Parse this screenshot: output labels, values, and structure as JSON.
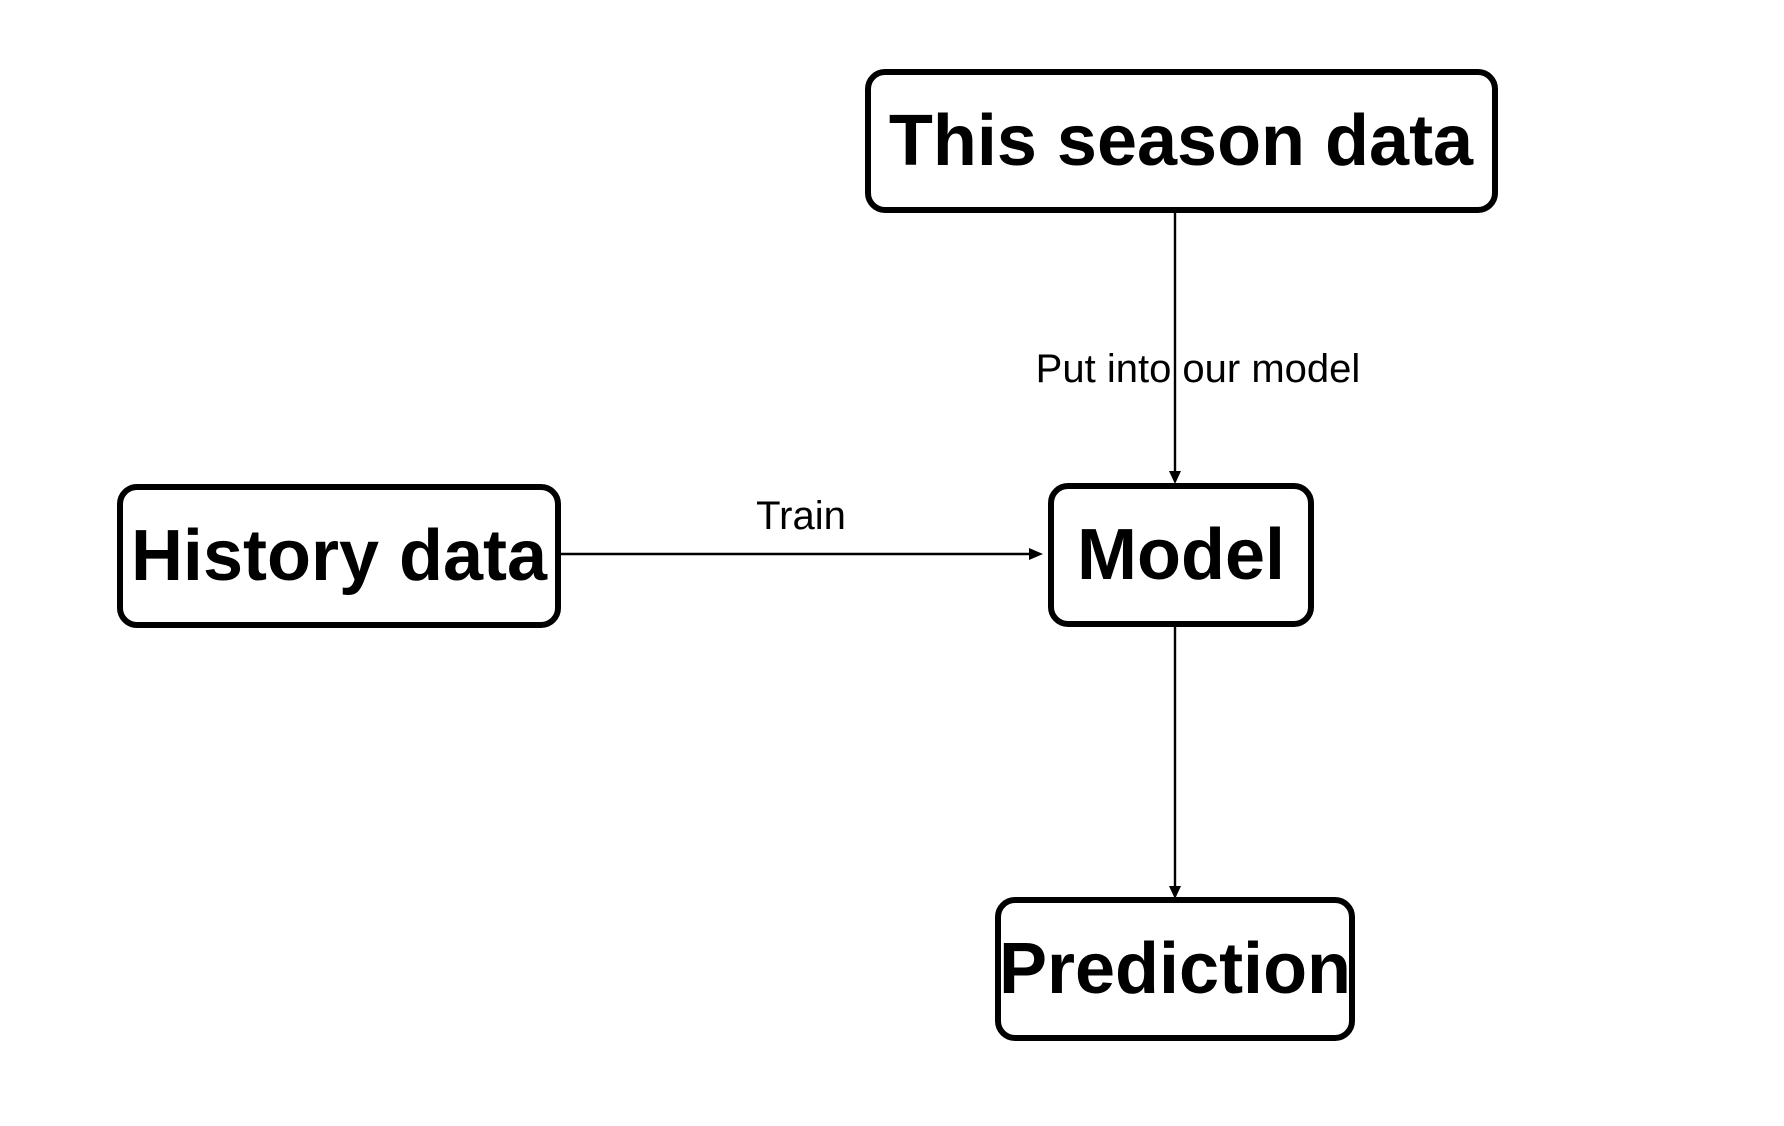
{
  "diagram": {
    "nodes": {
      "this_season": {
        "label": "This season data"
      },
      "history": {
        "label": "History data"
      },
      "model": {
        "label": "Model"
      },
      "prediction": {
        "label": "Prediction"
      }
    },
    "edges": {
      "history_to_model": {
        "label": "Train"
      },
      "season_to_model": {
        "label": "Put into our model"
      },
      "model_to_prediction": {
        "label": ""
      }
    },
    "colors": {
      "stroke": "#000000",
      "fill": "#ffffff",
      "text": "#000000"
    }
  }
}
